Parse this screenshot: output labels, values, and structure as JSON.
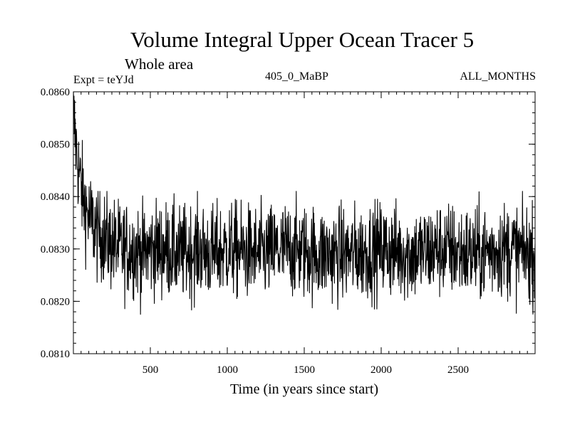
{
  "chart_data": {
    "type": "line",
    "title": "Volume Integral Upper Ocean Tracer 5",
    "subtitle": "Whole area",
    "expt_label": "Expt = teYJd",
    "case_label": "405_0_MaBP",
    "period_label": "ALL_MONTHS",
    "xlabel": "Time (in years since start)",
    "ylabel": "",
    "xlim": [
      0,
      3000
    ],
    "ylim": [
      0.081,
      0.086
    ],
    "x_ticks": [
      500,
      1000,
      1500,
      2000,
      2500
    ],
    "x_tick_labels": [
      "500",
      "1000",
      "1500",
      "2000",
      "2500"
    ],
    "y_ticks": [
      0.081,
      0.082,
      0.083,
      0.084,
      0.085,
      0.086
    ],
    "y_tick_labels": [
      "0.0810",
      "0.0820",
      "0.0830",
      "0.0840",
      "0.0850",
      "0.0860"
    ],
    "grid": false,
    "line_color": "#000000",
    "series": [
      {
        "name": "Volume Integral Upper Ocean Tracer 5",
        "x": [
          0,
          10,
          20,
          30,
          40,
          50,
          60,
          70,
          80,
          90,
          100,
          120,
          140,
          160,
          180,
          200,
          250,
          300,
          350,
          400,
          450,
          500,
          600,
          700,
          800,
          900,
          1000,
          1200,
          1400,
          1600,
          1800,
          2000,
          2200,
          2400,
          2600,
          2800,
          3000
        ],
        "values": [
          0.0856,
          0.0852,
          0.0849,
          0.0846,
          0.0844,
          0.0842,
          0.084,
          0.0839,
          0.0838,
          0.0837,
          0.0836,
          0.0835,
          0.0834,
          0.0833,
          0.0833,
          0.0832,
          0.0831,
          0.083,
          0.083,
          0.083,
          0.0829,
          0.083,
          0.083,
          0.0829,
          0.083,
          0.0829,
          0.083,
          0.0829,
          0.083,
          0.0829,
          0.0829,
          0.083,
          0.0829,
          0.083,
          0.0829,
          0.083,
          0.0829
        ],
        "annual_variability": 0.00045,
        "annual_extremes_range": [
          0.08155,
          0.0841
        ]
      }
    ]
  }
}
